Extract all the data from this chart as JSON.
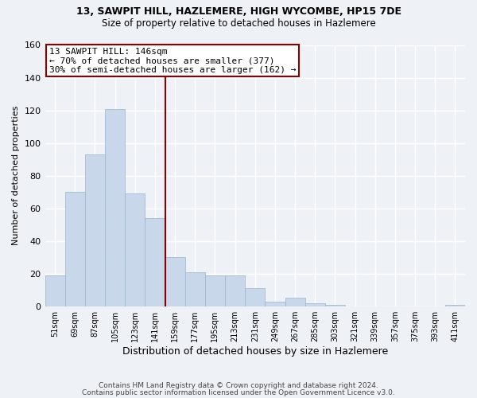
{
  "title": "13, SAWPIT HILL, HAZLEMERE, HIGH WYCOMBE, HP15 7DE",
  "subtitle": "Size of property relative to detached houses in Hazlemere",
  "xlabel": "Distribution of detached houses by size in Hazlemere",
  "ylabel": "Number of detached properties",
  "bar_color": "#c8d8ea",
  "bar_edge_color": "#9ab4cc",
  "background_color": "#eef2f7",
  "grid_color": "#ffffff",
  "annotation_line_color": "#8b0000",
  "annotation_text": "13 SAWPIT HILL: 146sqm\n← 70% of detached houses are smaller (377)\n30% of semi-detached houses are larger (162) →",
  "categories": [
    "51sqm",
    "69sqm",
    "87sqm",
    "105sqm",
    "123sqm",
    "141sqm",
    "159sqm",
    "177sqm",
    "195sqm",
    "213sqm",
    "231sqm",
    "249sqm",
    "267sqm",
    "285sqm",
    "303sqm",
    "321sqm",
    "339sqm",
    "357sqm",
    "375sqm",
    "393sqm",
    "411sqm"
  ],
  "values": [
    19,
    70,
    93,
    121,
    69,
    54,
    30,
    21,
    19,
    19,
    11,
    3,
    5,
    2,
    1,
    0,
    0,
    0,
    0,
    0,
    1
  ],
  "ylim": [
    0,
    160
  ],
  "yticks": [
    0,
    20,
    40,
    60,
    80,
    100,
    120,
    140,
    160
  ],
  "vline_position": 5.5,
  "footer1": "Contains HM Land Registry data © Crown copyright and database right 2024.",
  "footer2": "Contains public sector information licensed under the Open Government Licence v3.0."
}
